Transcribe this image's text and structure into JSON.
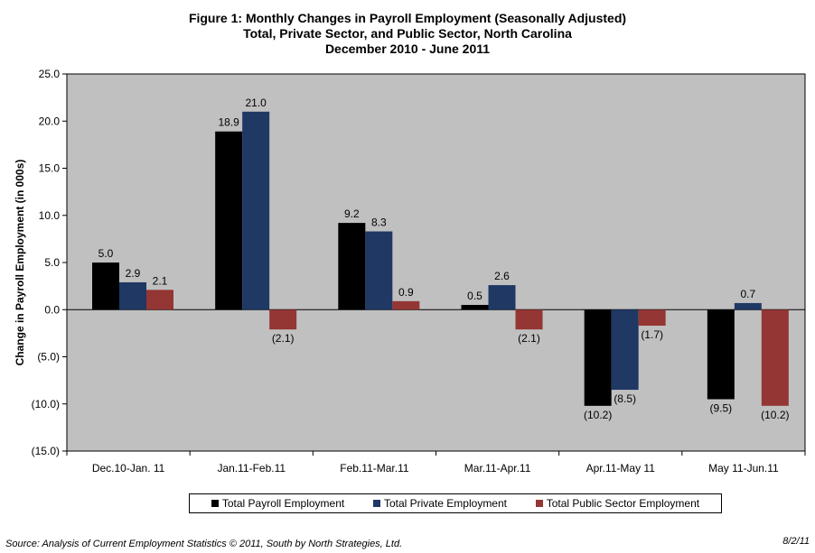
{
  "title": {
    "line1": "Figure 1: Monthly Changes in Payroll Employment (Seasonally Adjusted)",
    "line2": "Total, Private Sector, and Public Sector, North Carolina",
    "line3": "December 2010 -  June 2011"
  },
  "colors": {
    "plot_bg": "#c0c0c0",
    "total": "#000000",
    "private": "#1f3864",
    "public": "#943634"
  },
  "chart_data": {
    "type": "bar",
    "categories": [
      "Dec.10-Jan. 11",
      "Jan.11-Feb.11",
      "Feb.11-Mar.11",
      "Mar.11-Apr.11",
      "Apr.11-May 11",
      "May 11-Jun.11"
    ],
    "series": [
      {
        "name": "Total Payroll Employment",
        "values": [
          5.0,
          18.9,
          9.2,
          0.5,
          -10.2,
          -9.5
        ],
        "labels": [
          "5.0",
          "18.9",
          "9.2",
          "0.5",
          "(10.2)",
          "(9.5)"
        ]
      },
      {
        "name": "Total Private Employment",
        "values": [
          2.9,
          21.0,
          8.3,
          2.6,
          -8.5,
          0.7
        ],
        "labels": [
          "2.9",
          "21.0",
          "8.3",
          "2.6",
          "(8.5)",
          "0.7"
        ]
      },
      {
        "name": "Total Public Sector Employment",
        "values": [
          2.1,
          -2.1,
          0.9,
          -2.1,
          -1.7,
          -10.2
        ],
        "labels": [
          "2.1",
          "(2.1)",
          "0.9",
          "(2.1)",
          "(1.7)",
          "(10.2)"
        ]
      }
    ],
    "ylabel": "Change  in Payroll Employment (in 000s)",
    "ylim": [
      -15,
      25
    ],
    "yticks": [
      25,
      20,
      15,
      10,
      5,
      0,
      -5,
      -10,
      -15
    ],
    "ytick_labels": [
      "25.0",
      "20.0",
      "15.0",
      "10.0",
      "5.0",
      "0.0",
      "(5.0)",
      "(10.0)",
      "(15.0)"
    ],
    "grid": false,
    "legend_position": "bottom"
  },
  "source": "Source:  Analysis of Current Employment Statistics  © 2011, South by North Strategies, Ltd.",
  "date": "8/2/11"
}
